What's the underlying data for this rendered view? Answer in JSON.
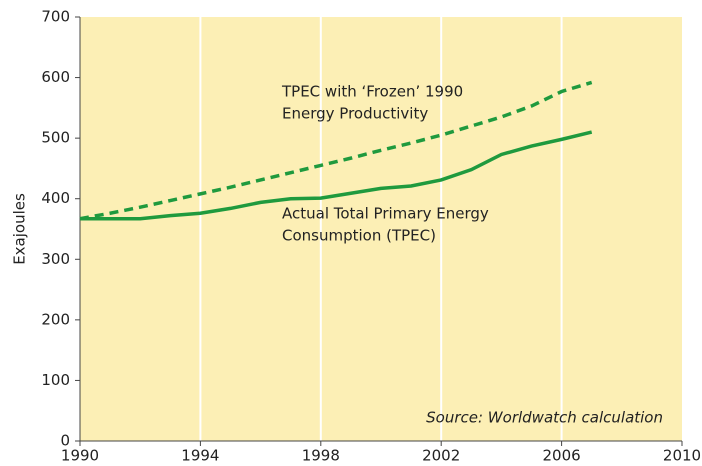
{
  "chart_data": {
    "type": "line",
    "y_label": "Exajoules",
    "source": "Source: Worldwatch calculation",
    "x": [
      1990,
      1991,
      1992,
      1993,
      1994,
      1995,
      1996,
      1997,
      1998,
      1999,
      2000,
      2001,
      2002,
      2003,
      2004,
      2005,
      2006,
      2007
    ],
    "series": [
      {
        "label_lines": [
          "TPEC with ‘Frozen’ 1990",
          "Energy Productivity"
        ],
        "color": "#1f9a3e",
        "dashed": true,
        "values": [
          367,
          376,
          386,
          397,
          408,
          419,
          431,
          443,
          455,
          467,
          480,
          492,
          505,
          520,
          535,
          553,
          577,
          592
        ]
      },
      {
        "label_lines": [
          "Actual Total Primary Energy",
          "Consumption (TPEC)"
        ],
        "color": "#1f9a3e",
        "dashed": false,
        "values": [
          367,
          367,
          367,
          372,
          376,
          384,
          394,
          400,
          401,
          409,
          417,
          421,
          431,
          448,
          473,
          487,
          498,
          510
        ]
      }
    ],
    "xlim": [
      1990,
      2010
    ],
    "xticks": [
      1990,
      1994,
      1998,
      2002,
      2006,
      2010
    ],
    "ylim": [
      0,
      700
    ],
    "yticks": [
      0,
      100,
      200,
      300,
      400,
      500,
      600,
      700
    ],
    "grid": true,
    "background": "#fcefb5"
  }
}
